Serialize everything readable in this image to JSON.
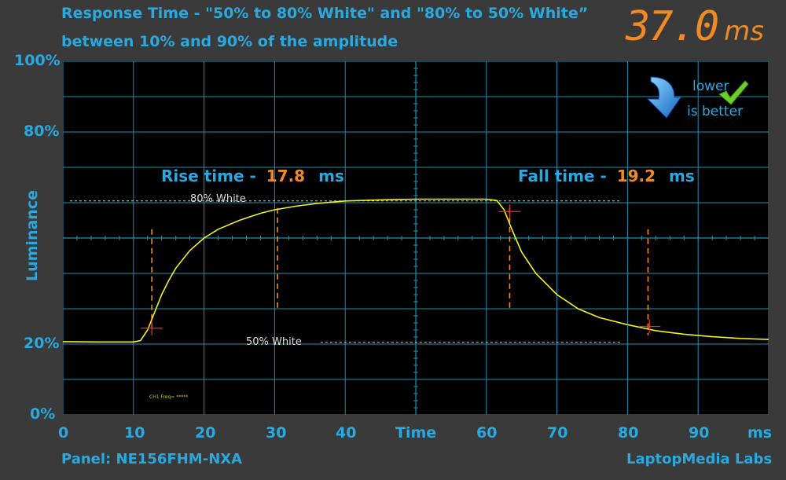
{
  "title": {
    "line1": "Response Time - \"50% to 80% White\" and \"80% to 50% White”",
    "line2": "between 10% and 90% of the amplitude"
  },
  "total": {
    "value": "37.0",
    "unit": "ms"
  },
  "badge": {
    "line1": "lower",
    "line2": "is better",
    "arrow_icon": "down-arrow-icon",
    "check_icon": "checkmark-icon"
  },
  "annotations": {
    "rise": {
      "label": "Rise time -",
      "value": "17.8",
      "unit": "ms"
    },
    "fall": {
      "label": "Fall time -",
      "value": "19.2",
      "unit": "ms"
    },
    "ref_high": "80% White",
    "ref_low": "50% White",
    "small_note": "CH1 Freq= *****"
  },
  "footer": {
    "panel": "Panel: NE156FHM-NXA",
    "brand": "LaptopMedia Labs"
  },
  "colors": {
    "accent": "#29a9e0",
    "orange": "#f08a24",
    "trace": "#f2f21e",
    "grid": "#1f8fb0",
    "plot_bg": "#000000",
    "frame_bg": "#3a3a3a"
  },
  "chart_data": {
    "type": "line",
    "xlabel": "Time",
    "x_unit_label": "ms",
    "ylabel": "Luminance",
    "xlim": [
      0,
      100
    ],
    "ylim": [
      0,
      100
    ],
    "x_ticks": [
      "0",
      "10",
      "20",
      "30",
      "40",
      "",
      "60",
      "70",
      "80",
      "90"
    ],
    "y_ticks": [
      {
        "value": 100,
        "label": "100%"
      },
      {
        "value": 80,
        "label": "80%"
      },
      {
        "value": 20,
        "label": "20%"
      },
      {
        "value": 0,
        "label": "0%"
      }
    ],
    "grid": true,
    "reference_levels": {
      "high": 60.5,
      "low": 20.5
    },
    "series": [
      {
        "x": [
          0,
          5,
          10,
          11,
          12,
          13,
          14,
          15,
          16,
          18,
          20,
          22,
          25,
          28,
          30,
          33,
          36,
          40,
          45,
          50,
          55,
          60,
          61.5,
          62.5,
          63.5,
          65,
          67,
          70,
          73,
          76,
          80,
          84,
          88,
          92,
          96,
          100
        ],
        "y": [
          20.7,
          20.6,
          20.6,
          21.0,
          24.0,
          29.0,
          34.0,
          38.0,
          41.5,
          46.5,
          50.0,
          52.5,
          55.0,
          57.0,
          58.0,
          59.0,
          59.8,
          60.5,
          60.8,
          61.0,
          61.0,
          61.0,
          60.6,
          58.0,
          53.0,
          46.0,
          40.0,
          34.0,
          30.0,
          27.5,
          25.5,
          23.8,
          22.8,
          22.1,
          21.6,
          21.3
        ]
      }
    ],
    "markers": [
      {
        "x": 12.6,
        "y": 24.5,
        "kind": "crosshair"
      },
      {
        "x": 63.3,
        "y": 57.5,
        "kind": "crosshair"
      },
      {
        "x": 83.1,
        "y": 25.0,
        "kind": "crosshair"
      }
    ],
    "dashed_verticals": [
      {
        "x": 12.6,
        "y_from": 23.5,
        "y_to": 52.5
      },
      {
        "x": 30.4,
        "y_from": 29.5,
        "y_to": 58.5
      },
      {
        "x": 63.3,
        "y_from": 29.5,
        "y_to": 58.5
      },
      {
        "x": 82.9,
        "y_from": 22.5,
        "y_to": 52.5
      }
    ]
  }
}
